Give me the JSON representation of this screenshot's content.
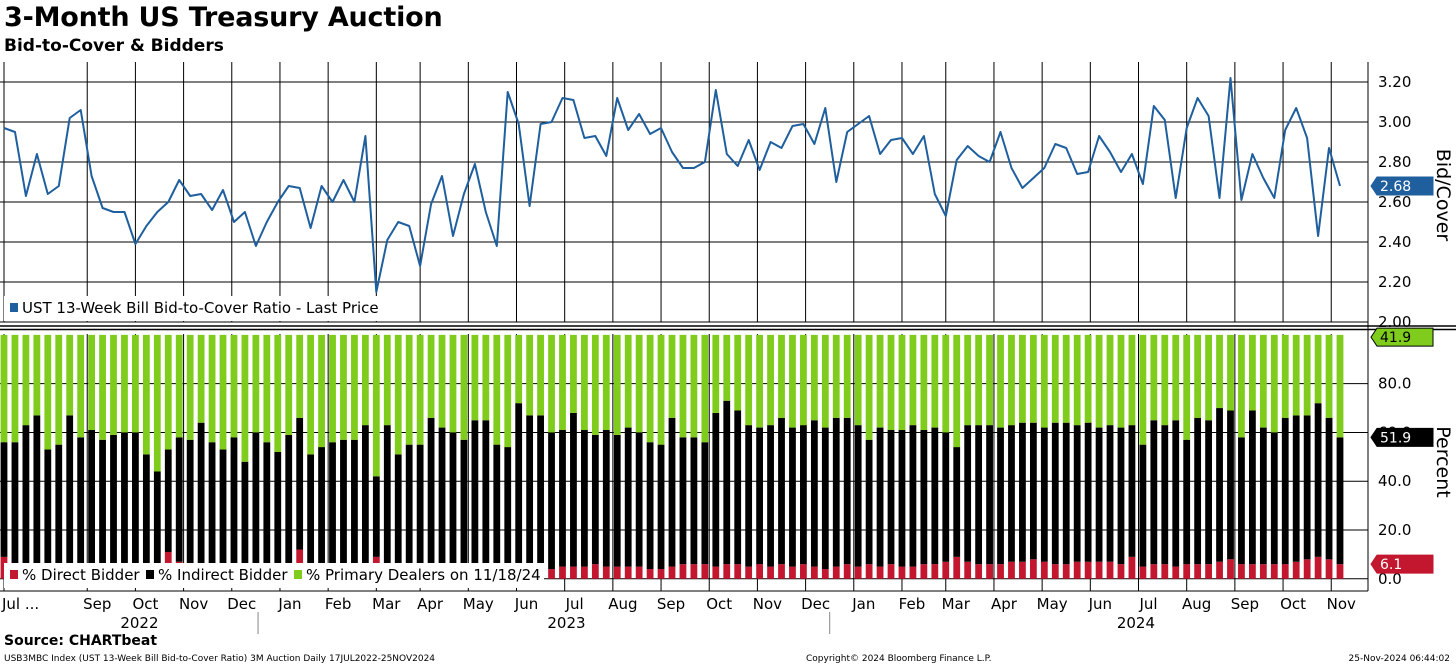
{
  "title": "3-Month US Treasury Auction",
  "subtitle": "Bid-to-Cover & Bidders",
  "source": "Source: CHARTbeat",
  "footer": {
    "left": "USB3MBC Index (UST 13-Week Bill Bid-to-Cover Ratio) 3M Auction  Daily 17JUL2022-25NOV2024",
    "center": "Copyright© 2024 Bloomberg Finance L.P.",
    "right": "25-Nov-2024 06:44:02"
  },
  "colors": {
    "line": "#1f5f9e",
    "direct": "#c3162f",
    "indirect": "#000000",
    "primary": "#7fcc1c",
    "grid": "#000000",
    "legend_bg": "#ffffff",
    "tag_text": "#ffffff"
  },
  "chart_data": [
    {
      "type": "line",
      "ylabel": "Bid/Cover",
      "ylim": [
        2.0,
        3.3
      ],
      "yticks": [
        "2.00",
        "2.20",
        "2.40",
        "2.60",
        "2.80",
        "3.00",
        "3.20"
      ],
      "legend": "UST 13-Week Bill Bid-to-Cover Ratio - Last Price",
      "last_value_label": "2.68",
      "grid": true,
      "series": [
        {
          "name": "UST 13-Week Bill Bid-to-Cover Ratio - Last Price",
          "values": [
            2.97,
            2.95,
            2.63,
            2.84,
            2.64,
            2.68,
            3.02,
            3.06,
            2.73,
            2.57,
            2.55,
            2.55,
            2.39,
            2.48,
            2.55,
            2.6,
            2.71,
            2.63,
            2.64,
            2.56,
            2.66,
            2.5,
            2.55,
            2.38,
            2.5,
            2.6,
            2.68,
            2.67,
            2.47,
            2.68,
            2.6,
            2.71,
            2.6,
            2.93,
            2.15,
            2.41,
            2.5,
            2.48,
            2.28,
            2.59,
            2.73,
            2.43,
            2.64,
            2.79,
            2.55,
            2.38,
            3.15,
            2.99,
            2.58,
            2.99,
            3.0,
            3.12,
            3.11,
            2.92,
            2.93,
            2.83,
            3.12,
            2.96,
            3.04,
            2.94,
            2.97,
            2.85,
            2.77,
            2.77,
            2.8,
            3.16,
            2.84,
            2.78,
            2.91,
            2.76,
            2.9,
            2.87,
            2.98,
            2.99,
            2.89,
            3.07,
            2.7,
            2.95,
            2.99,
            3.03,
            2.84,
            2.91,
            2.92,
            2.84,
            2.93,
            2.64,
            2.53,
            2.81,
            2.88,
            2.83,
            2.8,
            2.95,
            2.77,
            2.67,
            2.72,
            2.77,
            2.89,
            2.87,
            2.74,
            2.75,
            2.93,
            2.85,
            2.75,
            2.84,
            2.69,
            3.08,
            3.01,
            2.62,
            2.97,
            3.12,
            3.03,
            2.62,
            3.22,
            2.61,
            2.84,
            2.72,
            2.62,
            2.96,
            3.07,
            2.92,
            2.43,
            2.87,
            2.68
          ]
        }
      ]
    },
    {
      "type": "bar",
      "stacked": true,
      "ylabel": "Percent",
      "ylim": [
        -5,
        102
      ],
      "yticks": [
        "0.0",
        "20.0",
        "40.0",
        "60.0",
        "80.0"
      ],
      "last_value_labels": {
        "primary": "41.9",
        "indirect": "51.9",
        "direct": "6.1"
      },
      "legend": [
        "% Direct Bidder",
        "% Indirect Bidder",
        "% Primary Dealers on 11/18/24"
      ],
      "grid": true,
      "series": [
        {
          "name": "% Direct Bidder",
          "values": [
            9,
            5,
            4,
            4,
            5,
            3,
            5,
            4,
            3,
            5,
            4,
            4,
            4,
            4,
            4,
            11,
            7,
            5,
            5,
            5,
            4,
            5,
            4,
            4,
            5,
            4,
            4,
            12,
            4,
            4,
            4,
            4,
            4,
            4,
            9,
            4,
            4,
            3,
            5,
            4,
            5,
            6,
            5,
            5,
            5,
            3,
            5,
            5,
            4,
            5,
            4,
            5,
            5,
            5,
            6,
            5,
            5,
            5,
            5,
            4,
            4,
            5,
            6,
            6,
            6,
            5,
            6,
            6,
            5,
            6,
            5,
            6,
            5,
            6,
            5,
            4,
            5,
            6,
            5,
            6,
            5,
            6,
            5,
            5,
            6,
            6,
            7,
            9,
            7,
            6,
            6,
            6,
            7,
            7,
            8,
            7,
            6,
            6,
            7,
            7,
            7,
            7,
            6,
            9,
            5,
            6,
            6,
            5,
            6,
            6,
            6,
            7,
            8,
            6,
            6,
            6,
            6,
            6,
            7,
            8,
            9,
            8,
            6
          ]
        },
        {
          "name": "% Indirect Bidder",
          "values": [
            47,
            51,
            59,
            63,
            48,
            52,
            62,
            54,
            58,
            52,
            55,
            56,
            56,
            47,
            40,
            42,
            51,
            52,
            59,
            51,
            49,
            53,
            44,
            56,
            51,
            48,
            55,
            54,
            47,
            50,
            52,
            53,
            53,
            59,
            33,
            59,
            47,
            52,
            50,
            62,
            57,
            54,
            52,
            60,
            60,
            52,
            49,
            67,
            63,
            62,
            56,
            56,
            63,
            56,
            53,
            56,
            54,
            57,
            55,
            52,
            51,
            61,
            52,
            52,
            50,
            63,
            67,
            63,
            58,
            56,
            58,
            60,
            57,
            57,
            60,
            58,
            61,
            60,
            58,
            51,
            57,
            55,
            56,
            58,
            55,
            56,
            53,
            45,
            56,
            57,
            57,
            56,
            56,
            57,
            56,
            55,
            58,
            58,
            56,
            57,
            55,
            56,
            56,
            54,
            50,
            59,
            57,
            60,
            51,
            60,
            59,
            63,
            61,
            52,
            63,
            56,
            54,
            60,
            60,
            59,
            63,
            58,
            52
          ]
        },
        {
          "name": "% Primary Dealers on 11/18/24",
          "values": [
            44,
            44,
            37,
            33,
            47,
            45,
            33,
            42,
            39,
            43,
            41,
            40,
            40,
            49,
            56,
            47,
            42,
            43,
            36,
            44,
            47,
            42,
            52,
            40,
            44,
            48,
            41,
            34,
            49,
            46,
            44,
            43,
            43,
            37,
            58,
            37,
            49,
            45,
            45,
            34,
            38,
            40,
            43,
            35,
            35,
            45,
            46,
            28,
            33,
            33,
            40,
            39,
            32,
            39,
            41,
            39,
            41,
            38,
            40,
            44,
            45,
            34,
            42,
            42,
            44,
            32,
            27,
            31,
            37,
            38,
            37,
            34,
            38,
            37,
            35,
            38,
            34,
            34,
            37,
            43,
            38,
            39,
            39,
            37,
            39,
            38,
            40,
            46,
            37,
            37,
            37,
            38,
            37,
            36,
            36,
            38,
            36,
            36,
            37,
            36,
            38,
            37,
            38,
            37,
            45,
            35,
            37,
            35,
            43,
            34,
            35,
            30,
            31,
            42,
            31,
            38,
            40,
            34,
            33,
            33,
            28,
            34,
            42
          ]
        }
      ]
    }
  ],
  "x_axis": {
    "months": [
      {
        "label": "Jul ...",
        "pos": 0.0
      },
      {
        "label": "Sep",
        "pos": 7.6
      },
      {
        "label": "Oct",
        "pos": 12.0
      },
      {
        "label": "Nov",
        "pos": 16.4
      },
      {
        "label": "Dec",
        "pos": 20.8
      },
      {
        "label": "Jan",
        "pos": 25.2
      },
      {
        "label": "Feb",
        "pos": 29.6
      },
      {
        "label": "Mar",
        "pos": 34.0
      },
      {
        "label": "Apr",
        "pos": 38.0
      },
      {
        "label": "May",
        "pos": 42.4
      },
      {
        "label": "Jun",
        "pos": 46.8
      },
      {
        "label": "Jul",
        "pos": 51.2
      },
      {
        "label": "Aug",
        "pos": 55.6
      },
      {
        "label": "Sep",
        "pos": 60.0
      },
      {
        "label": "Oct",
        "pos": 64.4
      },
      {
        "label": "Nov",
        "pos": 68.8
      },
      {
        "label": "Dec",
        "pos": 73.2
      },
      {
        "label": "Jan",
        "pos": 77.6
      },
      {
        "label": "Feb",
        "pos": 82.0
      },
      {
        "label": "Mar",
        "pos": 86.0
      },
      {
        "label": "Apr",
        "pos": 90.4
      },
      {
        "label": "May",
        "pos": 94.8
      },
      {
        "label": "Jun",
        "pos": 99.2
      },
      {
        "label": "Jul",
        "pos": 103.6
      },
      {
        "label": "Aug",
        "pos": 108.0
      },
      {
        "label": "Sep",
        "pos": 112.4
      },
      {
        "label": "Oct",
        "pos": 116.8
      },
      {
        "label": "Nov",
        "pos": 121.2
      }
    ],
    "years": [
      {
        "label": "2022",
        "pos": 12.0
      },
      {
        "label": "2023",
        "pos": 51.0
      },
      {
        "label": "2024",
        "pos": 103.0
      }
    ],
    "year_breaks": [
      23.2,
      75.4
    ]
  }
}
